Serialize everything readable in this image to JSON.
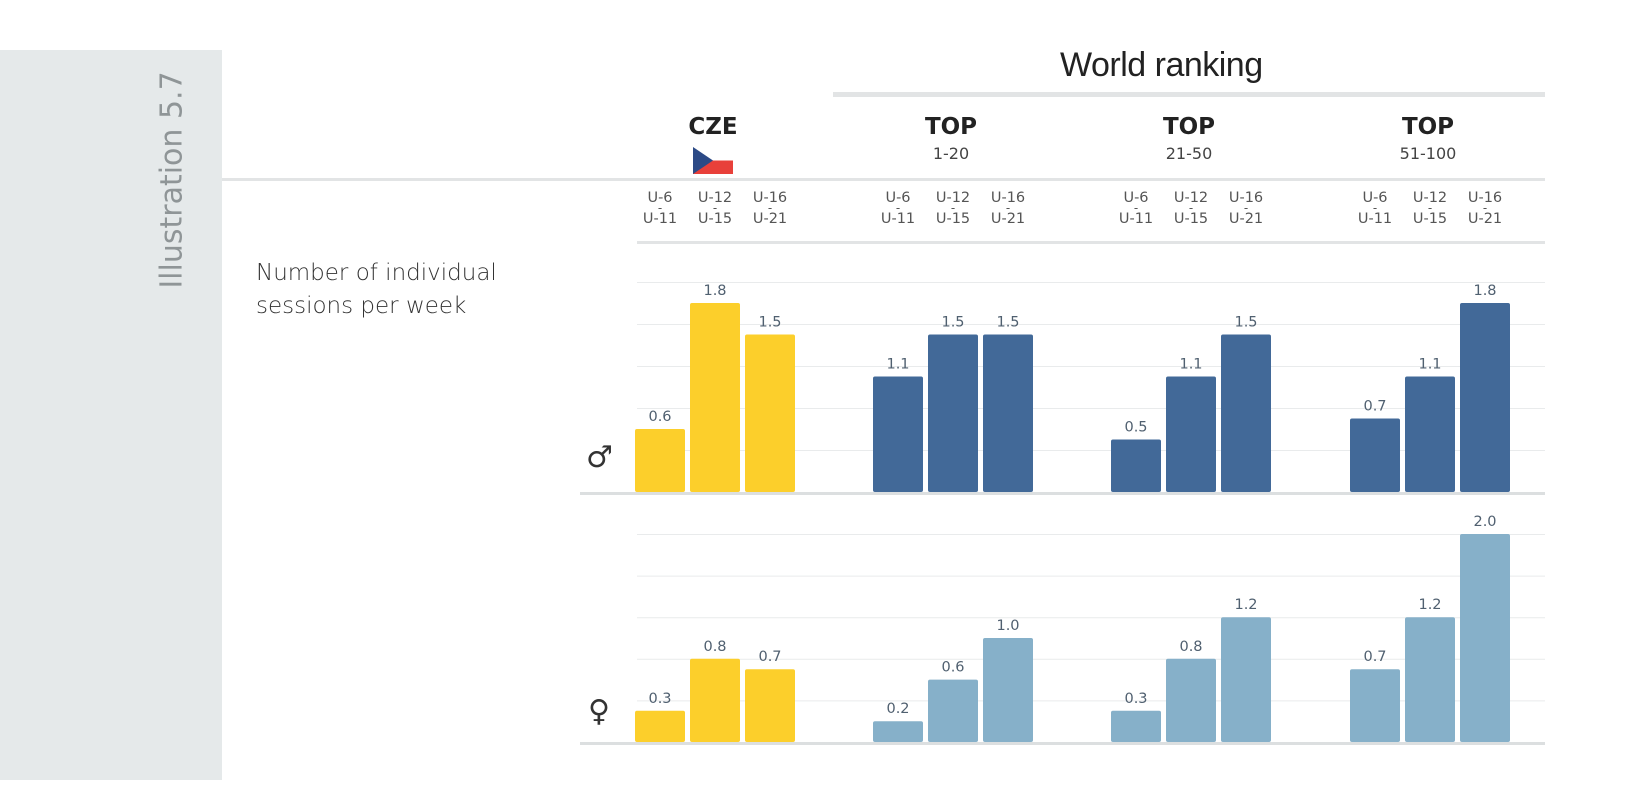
{
  "page": {
    "side_label": "Illustration 5.7",
    "world_ranking": "World ranking",
    "row_label_line1": "Number of individual",
    "row_label_line2": "sessions per week"
  },
  "groups": [
    {
      "top": "CZE",
      "sub": ""
    },
    {
      "top": "TOP",
      "sub": "1-20"
    },
    {
      "top": "TOP",
      "sub": "21-50"
    },
    {
      "top": "TOP",
      "sub": "51-100"
    }
  ],
  "categories": [
    {
      "a": "U-6",
      "b": "U-11"
    },
    {
      "a": "U-12",
      "b": "U-15"
    },
    {
      "a": "U-16",
      "b": "U-21"
    }
  ],
  "gender": {
    "male": "♂",
    "female": "♀"
  },
  "colors": {
    "cze": "#fccf2b",
    "male_top": "#426998",
    "female_top": "#86b0c9",
    "grid": "#e9ebec",
    "label": "#506070"
  },
  "chart_data": {
    "type": "bar",
    "title": "World ranking",
    "ylabel": "Number of individual sessions per week",
    "categories": [
      "U-6 – U-11",
      "U-12 – U-15",
      "U-16 – U-21"
    ],
    "groups": [
      "CZE",
      "TOP 1-20",
      "TOP 21-50",
      "TOP 51-100"
    ],
    "ylim": [
      0,
      2.0
    ],
    "grid": true,
    "series": [
      {
        "name": "♂",
        "values": [
          [
            0.6,
            1.8,
            1.5
          ],
          [
            1.1,
            1.5,
            1.5
          ],
          [
            0.5,
            1.1,
            1.5
          ],
          [
            0.7,
            1.1,
            1.8
          ]
        ]
      },
      {
        "name": "♀",
        "values": [
          [
            0.3,
            0.8,
            0.7
          ],
          [
            0.2,
            0.6,
            1.0
          ],
          [
            0.3,
            0.8,
            1.2
          ],
          [
            0.7,
            1.2,
            2.0
          ]
        ]
      }
    ]
  }
}
